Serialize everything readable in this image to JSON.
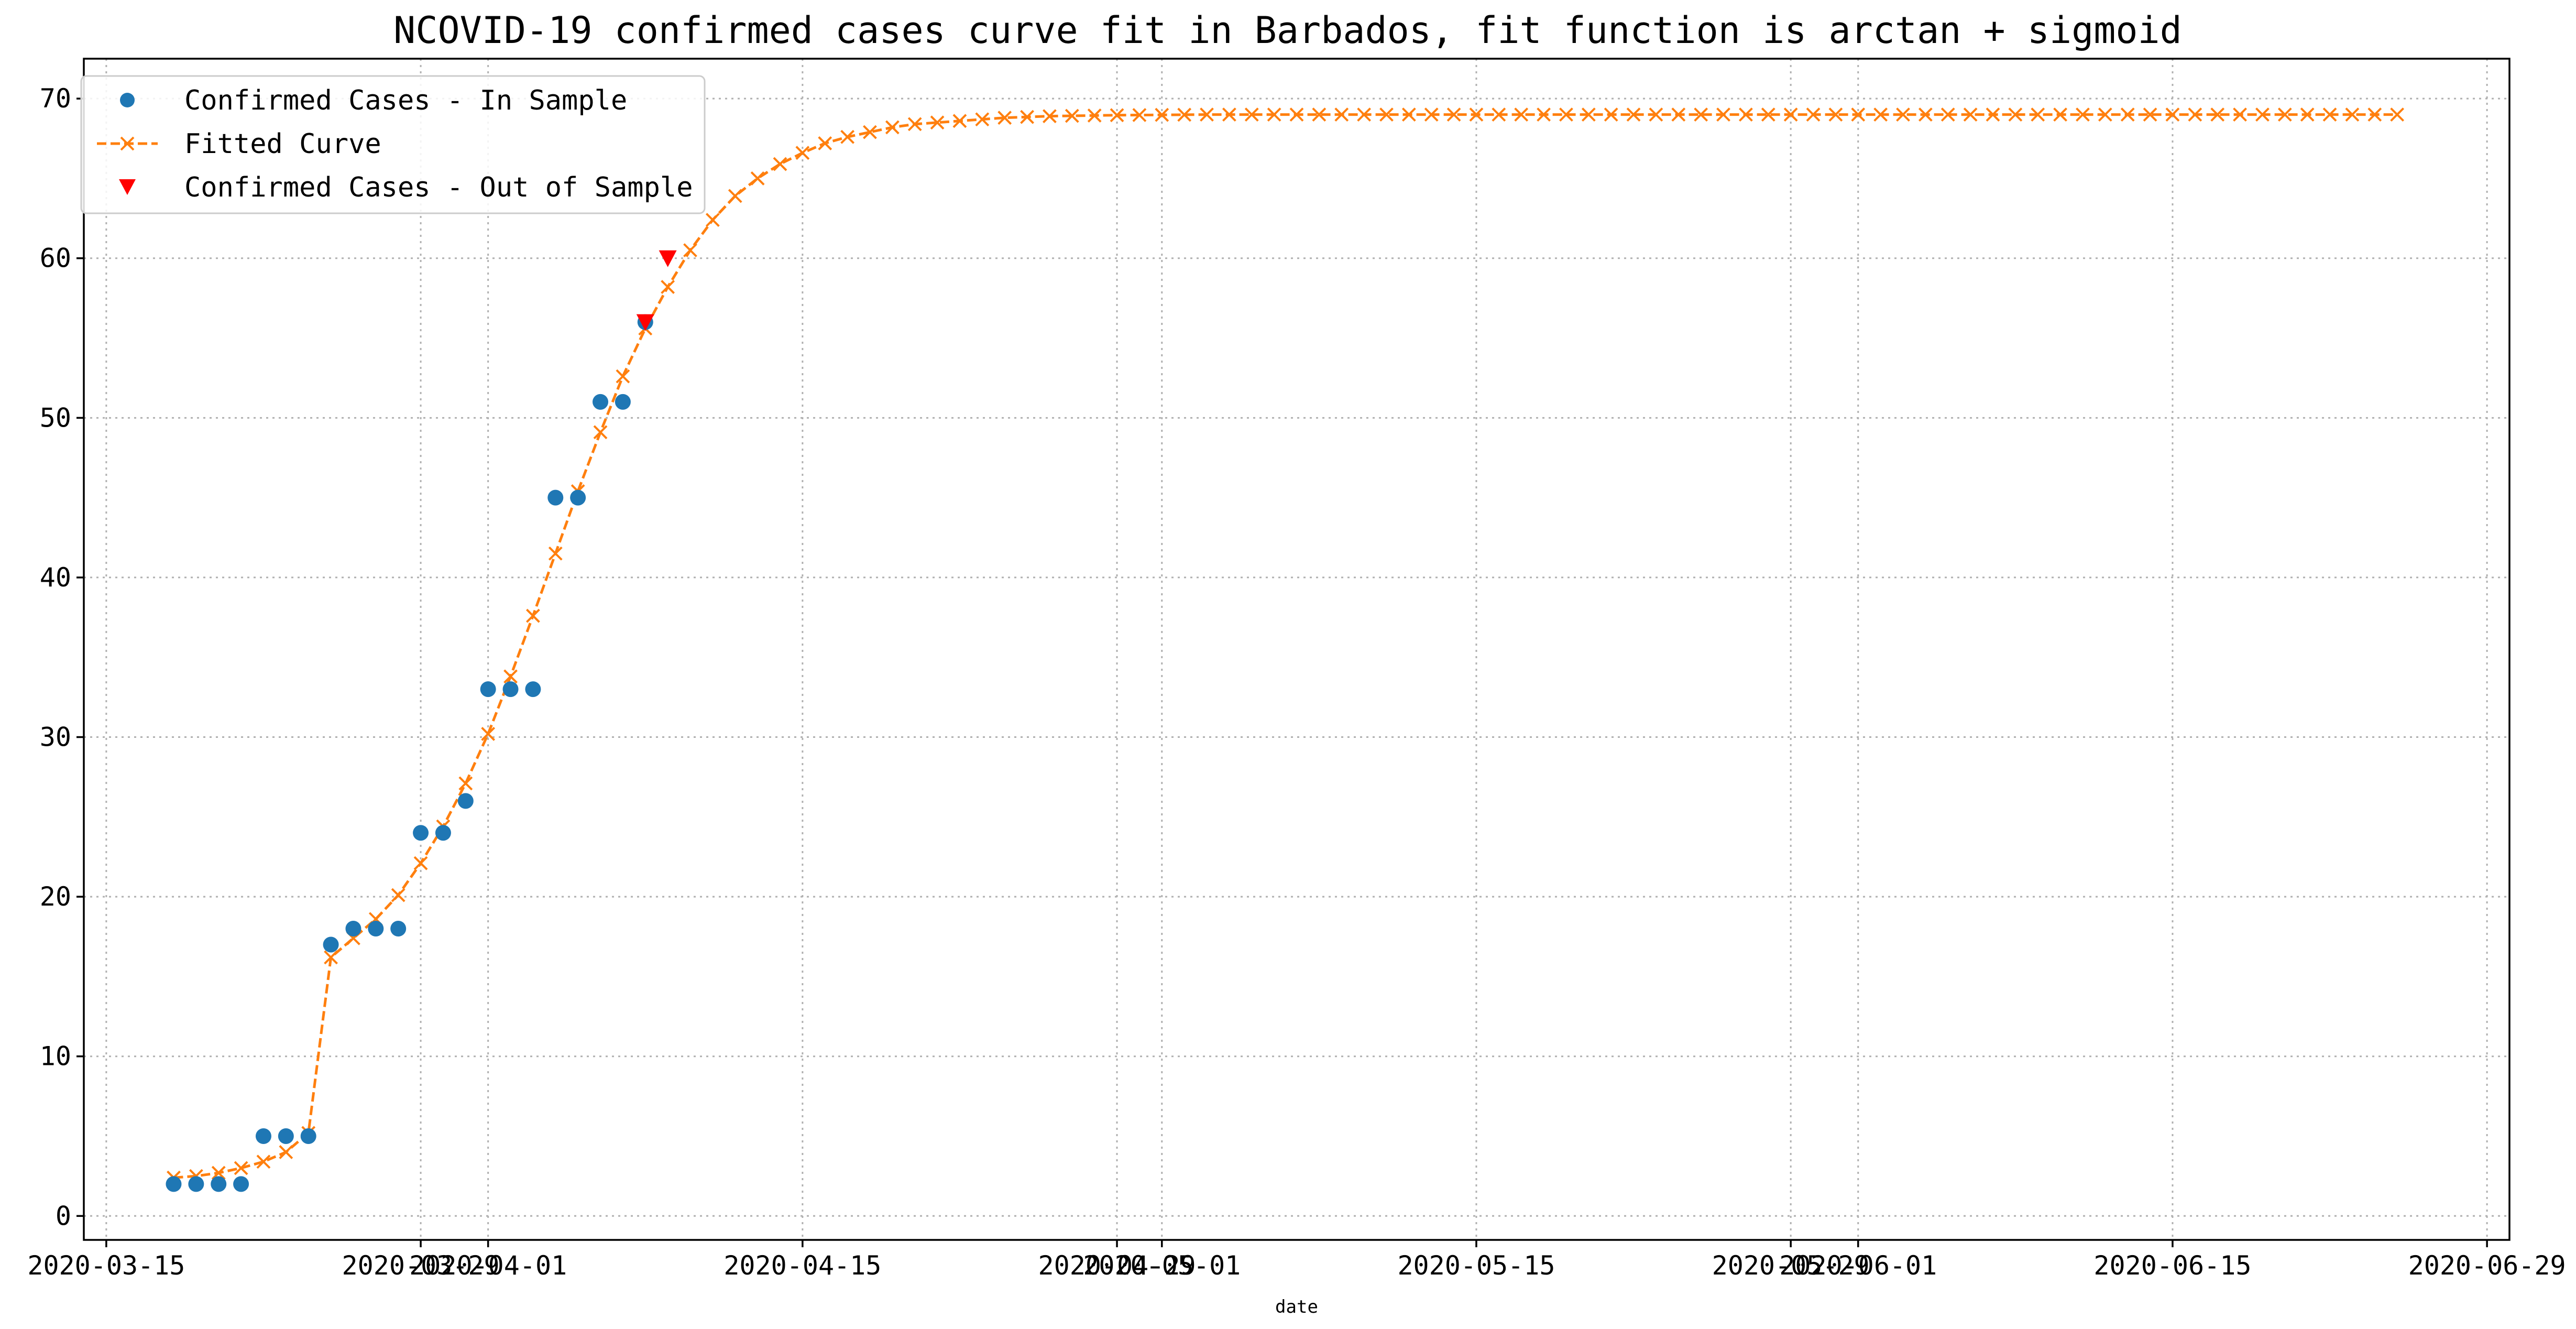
{
  "chart_data": {
    "type": "line",
    "title": "NCOVID-19 confirmed cases curve fit in Barbados, fit function is arctan + sigmoid",
    "xlabel": "date",
    "ylabel": "",
    "x_axis_type": "date",
    "xlim": [
      "2020-03-14",
      "2020-06-30"
    ],
    "ylim": [
      -1.5,
      72.5
    ],
    "grid": true,
    "legend_placement": "top-left",
    "yticks": [
      0,
      10,
      20,
      30,
      40,
      50,
      60,
      70
    ],
    "xticks": [
      {
        "date": "2020-03-15",
        "label": "2020-03-15"
      },
      {
        "date": "2020-03-29",
        "label": "2020-03-29"
      },
      {
        "date": "2020-04-01",
        "label": "2020-04-01"
      },
      {
        "date": "2020-04-15",
        "label": "2020-04-15"
      },
      {
        "date": "2020-04-29",
        "label": "2020-04-29"
      },
      {
        "date": "2020-05-01",
        "label": "2020-05-01"
      },
      {
        "date": "2020-05-15",
        "label": "2020-05-15"
      },
      {
        "date": "2020-05-29",
        "label": "2020-05-29"
      },
      {
        "date": "2020-06-01",
        "label": "2020-06-01"
      },
      {
        "date": "2020-06-15",
        "label": "2020-06-15"
      },
      {
        "date": "2020-06-29",
        "label": "2020-06-29"
      }
    ],
    "series": [
      {
        "name": "Confirmed Cases - In Sample",
        "marker": "circle",
        "color": "#1f77b4",
        "x": [
          "2020-03-18",
          "2020-03-19",
          "2020-03-20",
          "2020-03-21",
          "2020-03-22",
          "2020-03-23",
          "2020-03-24",
          "2020-03-25",
          "2020-03-26",
          "2020-03-27",
          "2020-03-28",
          "2020-03-29",
          "2020-03-30",
          "2020-03-31",
          "2020-04-01",
          "2020-04-02",
          "2020-04-03",
          "2020-04-04",
          "2020-04-05",
          "2020-04-06",
          "2020-04-07",
          "2020-04-08"
        ],
        "y": [
          2,
          2,
          2,
          2,
          5,
          5,
          5,
          17,
          18,
          18,
          18,
          24,
          24,
          26,
          33,
          33,
          33,
          45,
          45,
          51,
          51,
          56
        ]
      },
      {
        "name": "Fitted Curve",
        "marker": "x",
        "line": "dashed",
        "color": "#ff7f0e",
        "start": "2020-03-18",
        "step_days": 1,
        "y": [
          2.4,
          2.5,
          2.7,
          3.0,
          3.4,
          4.0,
          5.2,
          16.2,
          17.4,
          18.6,
          20.1,
          22.1,
          24.4,
          27.1,
          30.2,
          33.8,
          37.6,
          41.5,
          45.4,
          49.1,
          52.6,
          55.6,
          58.2,
          60.5,
          62.4,
          63.9,
          65.0,
          65.9,
          66.6,
          67.2,
          67.6,
          67.9,
          68.2,
          68.4,
          68.5,
          68.6,
          68.7,
          68.8,
          68.85,
          68.9,
          68.92,
          68.94,
          68.96,
          68.97,
          68.98,
          68.99,
          69,
          69,
          69,
          69,
          69,
          69,
          69,
          69,
          69,
          69,
          69,
          69,
          69,
          69,
          69,
          69,
          69,
          69,
          69,
          69,
          69,
          69,
          69,
          69,
          69,
          69,
          69,
          69,
          69,
          69,
          69,
          69,
          69,
          69,
          69,
          69,
          69,
          69,
          69,
          69,
          69,
          69,
          69,
          69,
          69,
          69,
          69,
          69,
          69,
          69,
          69,
          69,
          69,
          69
        ]
      },
      {
        "name": "Confirmed Cases - Out of Sample",
        "marker": "triangle-down",
        "color": "#ff0000",
        "x": [
          "2020-04-08",
          "2020-04-09"
        ],
        "y": [
          56,
          60
        ]
      }
    ]
  }
}
